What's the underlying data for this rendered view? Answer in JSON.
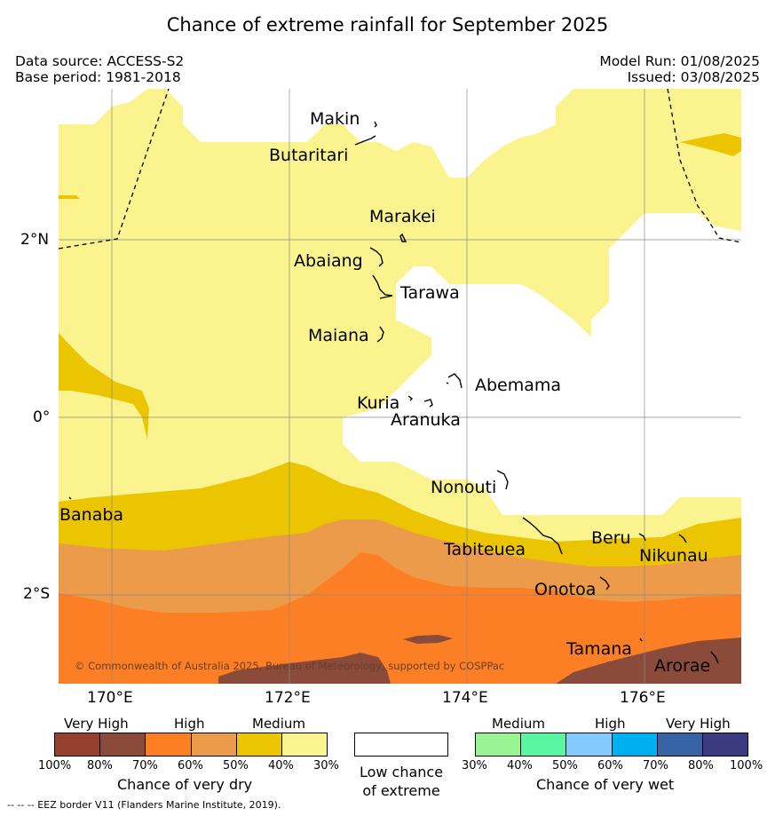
{
  "title": "Chance of extreme rainfall for September 2025",
  "header_left": {
    "source": "Data source: ACCESS-S2",
    "base_period": "Base period: 1981-2018"
  },
  "header_right": {
    "model_run": "Model Run: 01/08/2025",
    "issued": "Issued: 03/08/2025"
  },
  "map": {
    "longitude_labels": [
      "170°E",
      "172°E",
      "174°E",
      "176°E"
    ],
    "latitude_labels": [
      "2°N",
      "0°",
      "2°S"
    ],
    "places": [
      "Makin",
      "Butaritari",
      "Marakei",
      "Abaiang",
      "Tarawa",
      "Maiana",
      "Abemama",
      "Kuria",
      "Aranuka",
      "Nonouti",
      "Banaba",
      "Tabiteuea",
      "Beru",
      "Nikunau",
      "Onotoa",
      "Tamana",
      "Arorae"
    ],
    "copyright": "© Commonwealth of Australia 2025, Bureau of Meteorology, supported by COSPPac",
    "grid": true,
    "colors": {
      "dry_100_80": "#96402f",
      "dry_80_70": "#8b4b3a",
      "dry_70_60": "#fd7f25",
      "dry_60_50": "#ec9b4a",
      "dry_50_40": "#ebc502",
      "dry_40_30": "#fbf48e",
      "low_chance": "#ffffff"
    }
  },
  "legend": {
    "dry": {
      "categories": [
        "Very High",
        "High",
        "Medium"
      ],
      "ticks": [
        "100%",
        "80%",
        "70%",
        "60%",
        "50%",
        "40%",
        "30%"
      ],
      "caption": "Chance of very dry",
      "colors": [
        "#96402f",
        "#8b4b3a",
        "#fd7f25",
        "#ec9b4a",
        "#ebc502",
        "#fbf48e"
      ]
    },
    "low": {
      "line1": "Low chance",
      "line2": "of extreme",
      "color": "#ffffff"
    },
    "wet": {
      "categories": [
        "Medium",
        "High",
        "Very High"
      ],
      "ticks": [
        "30%",
        "40%",
        "50%",
        "60%",
        "70%",
        "80%",
        "100%"
      ],
      "caption": "Chance of very wet",
      "colors": [
        "#99f494",
        "#5af6a1",
        "#84cafd",
        "#00b0ee",
        "#3762a3",
        "#3c3a80"
      ]
    }
  },
  "footer_note": "--  --  -- EEZ border V11 (Flanders Marine Institute, 2019)."
}
